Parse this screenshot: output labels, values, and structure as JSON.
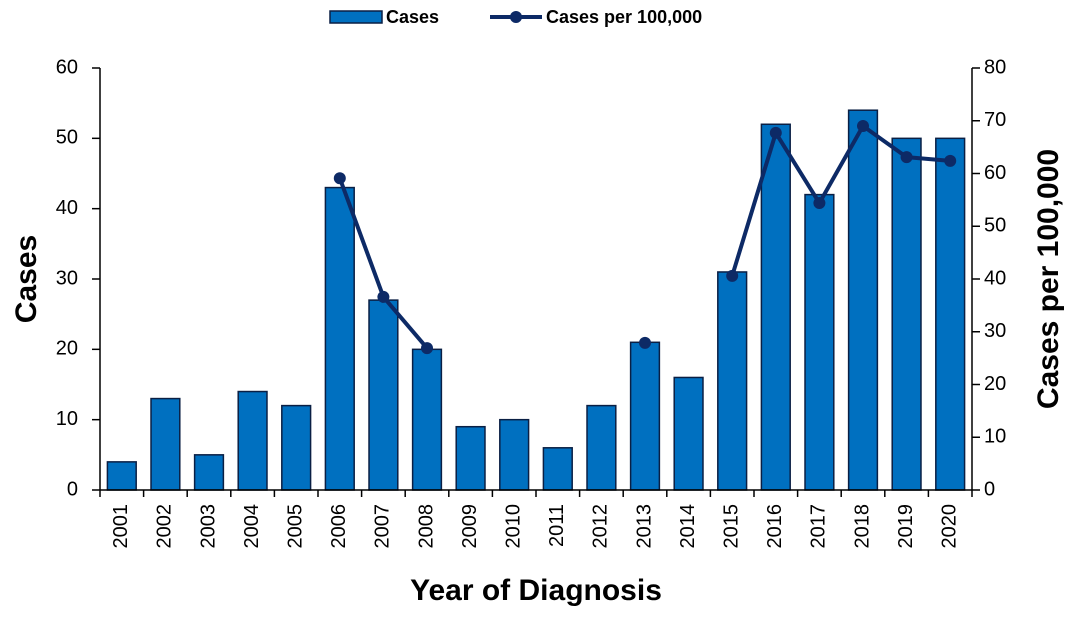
{
  "chart_data": {
    "type": "bar_line",
    "x_label": "Year of Diagnosis",
    "y_label": "Cases",
    "y2_label": "Cases per 100,000",
    "categories": [
      "2001",
      "2002",
      "2003",
      "2004",
      "2005",
      "2006",
      "2007",
      "2008",
      "2009",
      "2010",
      "2011",
      "2012",
      "2013",
      "2014",
      "2015",
      "2016",
      "2017",
      "2018",
      "2019",
      "2020"
    ],
    "series": [
      {
        "name": "Cases",
        "type": "bar",
        "color": "#0070c0",
        "values": [
          4,
          13,
          5,
          14,
          12,
          43,
          27,
          20,
          9,
          10,
          6,
          12,
          21,
          16,
          31,
          52,
          42,
          54,
          50,
          50
        ]
      },
      {
        "name": "Cases per 100,000",
        "type": "line",
        "axis": "y2",
        "color": "#0d2a66",
        "values": [
          null,
          null,
          null,
          null,
          null,
          59.1,
          36.6,
          26.9,
          null,
          null,
          null,
          null,
          27.9,
          null,
          40.6,
          67.7,
          54.4,
          69.0,
          63.1,
          62.4
        ]
      }
    ],
    "ylim": [
      0,
      60
    ],
    "yticks": [
      0,
      10,
      20,
      30,
      40,
      50,
      60
    ],
    "y2lim": [
      0,
      80
    ],
    "y2ticks": [
      0,
      10,
      20,
      30,
      40,
      50,
      60,
      70,
      80
    ],
    "legend": "top"
  }
}
